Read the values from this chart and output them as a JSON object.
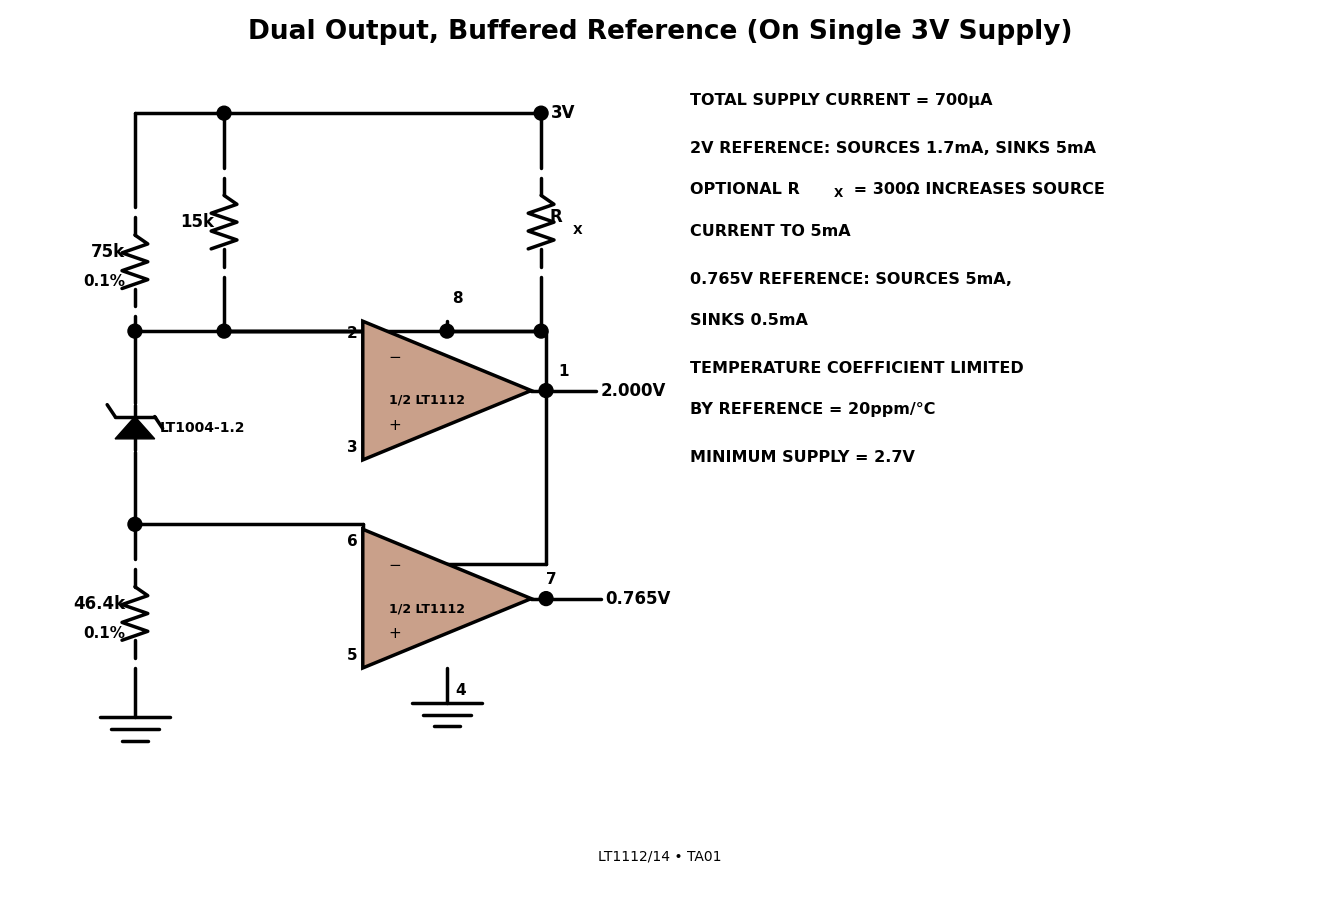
{
  "title": "Dual Output, Buffered Reference (On Single 3V Supply)",
  "bg_color": "#ffffff",
  "line_color": "#000000",
  "line_width": 2.5,
  "opamp_fill": "#c9a08a",
  "footer": "LT1112/14 • TA01",
  "note_lines": [
    [
      "TOTAL SUPPLY CURRENT = 700",
      "μ",
      "A"
    ],
    [
      "2V REFERENCE: SOURCES 1.7mA, SINKS 5mA"
    ],
    [
      "OPTIONAL R",
      "X",
      " = 300Ω INCREASES SOURCE"
    ],
    [
      "CURRENT TO 5mA"
    ],
    [
      "0.765V REFERENCE: SOURCES 5mA,"
    ],
    [
      "SINKS 0.5mA"
    ],
    [
      "TEMPERATURE COEFFICIENT LIMITED"
    ],
    [
      "BY REFERENCE = 20ppm/°C"
    ],
    [
      "MINIMUM SUPPLY = 2.7V"
    ]
  ]
}
